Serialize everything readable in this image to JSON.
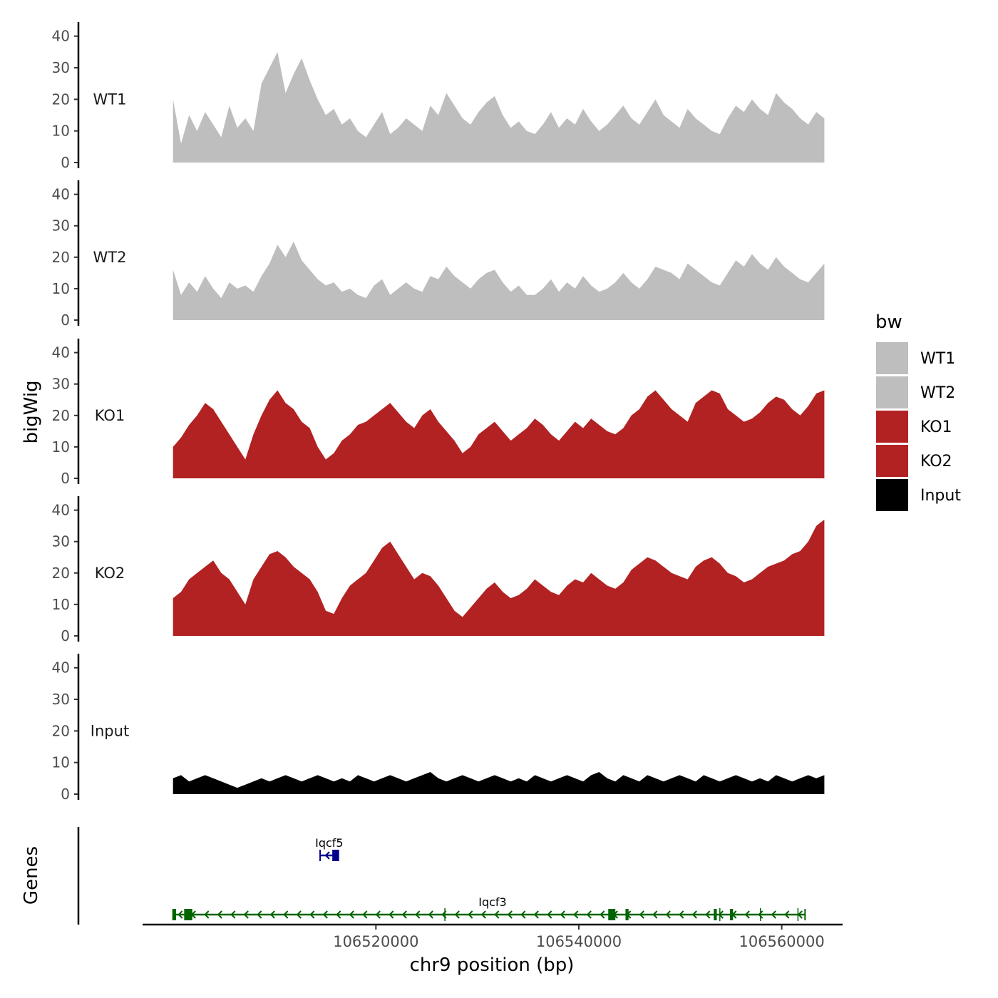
{
  "chart_data": {
    "type": "area",
    "title": "",
    "xlabel": "chr9 position (bp)",
    "ylabel": "bigWig",
    "genes_label": "Genes",
    "xlim": [
      106497000,
      106566000
    ],
    "ylim": [
      0,
      44
    ],
    "y_ticks": [
      "0",
      "10",
      "20",
      "30",
      "40"
    ],
    "x_ticks": [
      {
        "value": 106520000,
        "label": "106520000"
      },
      {
        "value": 106540000,
        "label": "106540000"
      },
      {
        "value": 106560000,
        "label": "106560000"
      }
    ],
    "legend": {
      "title": "bw",
      "position": "right",
      "entries": [
        {
          "label": "WT1",
          "color": "#BEBEBE"
        },
        {
          "label": "WT2",
          "color": "#BEBEBE"
        },
        {
          "label": "KO1",
          "color": "#B22222"
        },
        {
          "label": "KO2",
          "color": "#B22222"
        },
        {
          "label": "Input",
          "color": "#000000"
        }
      ]
    },
    "region": {
      "start": 106500000,
      "end": 106564200
    },
    "series": [
      {
        "name": "WT1",
        "color": "#BEBEBE",
        "values": [
          20,
          6,
          15,
          10,
          16,
          12,
          8,
          18,
          11,
          14,
          10,
          25,
          30,
          35,
          22,
          28,
          33,
          26,
          20,
          15,
          17,
          12,
          14,
          10,
          8,
          12,
          16,
          9,
          11,
          14,
          12,
          10,
          18,
          15,
          22,
          18,
          14,
          12,
          16,
          19,
          21,
          15,
          11,
          13,
          10,
          9,
          12,
          16,
          11,
          14,
          12,
          17,
          13,
          10,
          12,
          15,
          18,
          14,
          12,
          16,
          20,
          15,
          13,
          11,
          17,
          14,
          12,
          10,
          9,
          14,
          18,
          16,
          20,
          17,
          15,
          22,
          19,
          17,
          14,
          12,
          16,
          14
        ]
      },
      {
        "name": "WT2",
        "color": "#BEBEBE",
        "values": [
          16,
          8,
          12,
          9,
          14,
          10,
          7,
          12,
          10,
          11,
          9,
          14,
          18,
          24,
          20,
          25,
          19,
          16,
          13,
          11,
          12,
          9,
          10,
          8,
          7,
          11,
          13,
          8,
          10,
          12,
          10,
          9,
          14,
          13,
          17,
          14,
          12,
          10,
          13,
          15,
          16,
          12,
          9,
          11,
          8,
          8,
          10,
          13,
          9,
          12,
          10,
          14,
          11,
          9,
          10,
          12,
          15,
          12,
          10,
          13,
          17,
          16,
          15,
          13,
          18,
          16,
          14,
          12,
          11,
          15,
          19,
          17,
          21,
          18,
          16,
          20,
          17,
          15,
          13,
          12,
          15,
          18
        ]
      },
      {
        "name": "KO1",
        "color": "#B22222",
        "values": [
          10,
          13,
          17,
          20,
          24,
          22,
          18,
          14,
          10,
          6,
          14,
          20,
          25,
          28,
          24,
          22,
          18,
          16,
          10,
          6,
          8,
          12,
          14,
          17,
          18,
          20,
          22,
          24,
          21,
          18,
          16,
          20,
          22,
          18,
          15,
          12,
          8,
          10,
          14,
          16,
          18,
          15,
          12,
          14,
          16,
          19,
          17,
          14,
          12,
          15,
          18,
          16,
          19,
          17,
          15,
          14,
          16,
          20,
          22,
          26,
          28,
          25,
          22,
          20,
          18,
          24,
          26,
          28,
          27,
          22,
          20,
          18,
          19,
          21,
          24,
          26,
          25,
          22,
          20,
          23,
          27,
          28
        ]
      },
      {
        "name": "KO2",
        "color": "#B22222",
        "values": [
          12,
          14,
          18,
          20,
          22,
          24,
          20,
          18,
          14,
          10,
          18,
          22,
          26,
          27,
          25,
          22,
          20,
          18,
          14,
          8,
          7,
          12,
          16,
          18,
          20,
          24,
          28,
          30,
          26,
          22,
          18,
          20,
          19,
          16,
          12,
          8,
          6,
          9,
          12,
          15,
          17,
          14,
          12,
          13,
          15,
          18,
          16,
          14,
          13,
          16,
          18,
          17,
          20,
          18,
          16,
          15,
          17,
          21,
          23,
          25,
          24,
          22,
          20,
          19,
          18,
          22,
          24,
          25,
          23,
          20,
          19,
          17,
          18,
          20,
          22,
          23,
          24,
          26,
          27,
          30,
          35,
          37
        ]
      },
      {
        "name": "Input",
        "color": "#000000",
        "values": [
          5,
          6,
          4,
          5,
          6,
          5,
          4,
          3,
          2,
          3,
          4,
          5,
          4,
          5,
          6,
          5,
          4,
          5,
          6,
          5,
          4,
          5,
          4,
          6,
          5,
          4,
          5,
          6,
          5,
          4,
          5,
          6,
          7,
          5,
          4,
          5,
          6,
          5,
          4,
          5,
          6,
          5,
          4,
          5,
          4,
          6,
          5,
          4,
          5,
          6,
          5,
          4,
          6,
          7,
          5,
          4,
          6,
          5,
          4,
          6,
          5,
          4,
          5,
          6,
          5,
          4,
          6,
          5,
          4,
          5,
          6,
          5,
          4,
          5,
          4,
          6,
          5,
          4,
          5,
          6,
          5,
          6
        ]
      }
    ],
    "genes": [
      {
        "name": "Iqcf5",
        "strand": "-",
        "start": 106514500,
        "end": 106516300,
        "exons": [
          [
            106515700,
            106516300
          ]
        ],
        "color": "#00008B",
        "row": 0
      },
      {
        "name": "Iqcf3",
        "strand": "-",
        "start": 106500000,
        "end": 106562300,
        "exons": [
          [
            106500000,
            106500300
          ],
          [
            106501100,
            106501900
          ],
          [
            106542900,
            106543600
          ],
          [
            106544600,
            106544900
          ],
          [
            106553300,
            106553600
          ],
          [
            106554900,
            106555200
          ]
        ],
        "introns_marks": [
          106526800,
          106553900,
          106557900,
          106561600
        ],
        "color": "#006400",
        "row": 1
      }
    ]
  }
}
